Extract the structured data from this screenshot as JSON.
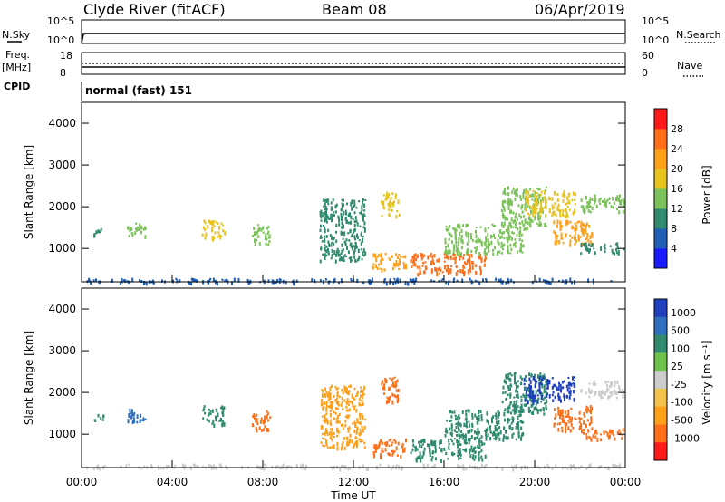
{
  "header": {
    "station": "Clyde River (fitACF)",
    "beam": "Beam 08",
    "date": "06/Apr/2019"
  },
  "noise_panel": {
    "left_label": "N.Sky",
    "right_label": "N.Search",
    "tick_top": "10^5",
    "tick_bottom": "10^0",
    "right_tick_top": "10^5",
    "right_tick_bottom": "10^0"
  },
  "freq_panel": {
    "left_label_1": "Freq.",
    "left_label_2": "[MHz]",
    "right_label": "Nave",
    "tick_top": "18",
    "tick_bottom": "8",
    "right_tick_top": "60",
    "right_tick_bottom": "0"
  },
  "cpid": {
    "label": "CPID",
    "mode": "normal (fast) 151"
  },
  "power_panel": {
    "ylabel": "Slant Range [km]",
    "yticks": [
      "1000",
      "2000",
      "3000",
      "4000"
    ],
    "colorbar_label": "Power [dB]",
    "colorbar_ticks": [
      "4",
      "8",
      "12",
      "16",
      "20",
      "24",
      "28"
    ],
    "colorbar_colors": [
      "#1a1aff",
      "#1f5fb5",
      "#2f8a6e",
      "#7cc25a",
      "#e8c21d",
      "#ff9f1a",
      "#ff6f1a",
      "#ff1a1a"
    ]
  },
  "velocity_panel": {
    "ylabel": "Slant Range [km]",
    "yticks": [
      "1000",
      "2000",
      "3000",
      "4000"
    ],
    "colorbar_label": "Velocity [m s⁻¹]",
    "colorbar_ticks": [
      "1000",
      "500",
      "100",
      "25",
      "-25",
      "-100",
      "-500",
      "-1000"
    ],
    "colorbar_colors": [
      "#1f3fbf",
      "#2f6fbf",
      "#2f8a6e",
      "#6cc24a",
      "#cccccc",
      "#f2c24a",
      "#ff9f1a",
      "#ff6f1a",
      "#ff1a1a"
    ]
  },
  "xaxis": {
    "ticks": [
      "00:00",
      "04:00",
      "08:00",
      "12:00",
      "16:00",
      "20:00",
      "00:00"
    ],
    "label": "Time UT"
  },
  "chart_data": {
    "type": "heatmap",
    "title": "Clyde River (fitACF)  Beam 08  06/Apr/2019",
    "xlabel": "Time UT",
    "ylabel": "Slant Range [km]",
    "xlim_hours": [
      0,
      24
    ],
    "ylim_km": [
      200,
      4500
    ],
    "grid": false,
    "power_regions": [
      {
        "t0": 0.5,
        "t1": 1.0,
        "r0": 1350,
        "r1": 1500,
        "db": 10
      },
      {
        "t0": 2.0,
        "t1": 2.8,
        "r0": 1300,
        "r1": 1650,
        "db": 14
      },
      {
        "t0": 5.3,
        "t1": 6.3,
        "r0": 1250,
        "r1": 1700,
        "db": 16
      },
      {
        "t0": 7.5,
        "t1": 8.3,
        "r0": 1100,
        "r1": 1600,
        "db": 14
      },
      {
        "t0": 10.5,
        "t1": 12.5,
        "r0": 700,
        "r1": 2200,
        "db": 10
      },
      {
        "t0": 12.8,
        "t1": 14.3,
        "r0": 500,
        "r1": 900,
        "db": 22
      },
      {
        "t0": 13.2,
        "t1": 14.0,
        "r0": 1800,
        "r1": 2400,
        "db": 18
      },
      {
        "t0": 14.5,
        "t1": 17.8,
        "r0": 400,
        "r1": 900,
        "db": 26
      },
      {
        "t0": 16.0,
        "t1": 19.5,
        "r0": 900,
        "r1": 1600,
        "db": 12
      },
      {
        "t0": 18.5,
        "t1": 20.5,
        "r0": 1500,
        "r1": 2500,
        "db": 12
      },
      {
        "t0": 19.5,
        "t1": 21.8,
        "r0": 1800,
        "r1": 2400,
        "db": 18
      },
      {
        "t0": 20.8,
        "t1": 22.5,
        "r0": 1100,
        "r1": 1700,
        "db": 20
      },
      {
        "t0": 22.0,
        "t1": 23.9,
        "r0": 1900,
        "r1": 2300,
        "db": 12
      },
      {
        "t0": 22.0,
        "t1": 23.9,
        "r0": 900,
        "r1": 1150,
        "db": 10
      },
      {
        "t0": 0.2,
        "t1": 23.8,
        "r0": 200,
        "r1": 300,
        "db": 6
      }
    ],
    "velocity_regions": [
      {
        "t0": 0.5,
        "t1": 1.0,
        "r0": 1350,
        "r1": 1500,
        "v": 100
      },
      {
        "t0": 2.0,
        "t1": 2.8,
        "r0": 1300,
        "r1": 1650,
        "v": 500
      },
      {
        "t0": 5.3,
        "t1": 6.3,
        "r0": 1250,
        "r1": 1700,
        "v": 100
      },
      {
        "t0": 7.5,
        "t1": 8.3,
        "r0": 1100,
        "r1": 1600,
        "v": -500
      },
      {
        "t0": 10.5,
        "t1": 12.5,
        "r0": 700,
        "r1": 2200,
        "v": -100
      },
      {
        "t0": 12.8,
        "t1": 14.3,
        "r0": 500,
        "r1": 900,
        "v": -500
      },
      {
        "t0": 13.2,
        "t1": 14.0,
        "r0": 1800,
        "r1": 2400,
        "v": -500
      },
      {
        "t0": 14.5,
        "t1": 17.8,
        "r0": 400,
        "r1": 900,
        "v": 100
      },
      {
        "t0": 16.0,
        "t1": 19.5,
        "r0": 900,
        "r1": 1600,
        "v": 100
      },
      {
        "t0": 18.5,
        "t1": 20.5,
        "r0": 1500,
        "r1": 2500,
        "v": 100
      },
      {
        "t0": 19.5,
        "t1": 21.8,
        "r0": 1800,
        "r1": 2400,
        "v": 1000
      },
      {
        "t0": 20.8,
        "t1": 22.5,
        "r0": 1100,
        "r1": 1700,
        "v": -500
      },
      {
        "t0": 22.0,
        "t1": 23.9,
        "r0": 1900,
        "r1": 2300,
        "v": 0
      },
      {
        "t0": 22.0,
        "t1": 23.9,
        "r0": 900,
        "r1": 1150,
        "v": -500
      },
      {
        "t0": 0.2,
        "t1": 23.8,
        "r0": 200,
        "r1": 300,
        "v": 0
      }
    ]
  }
}
